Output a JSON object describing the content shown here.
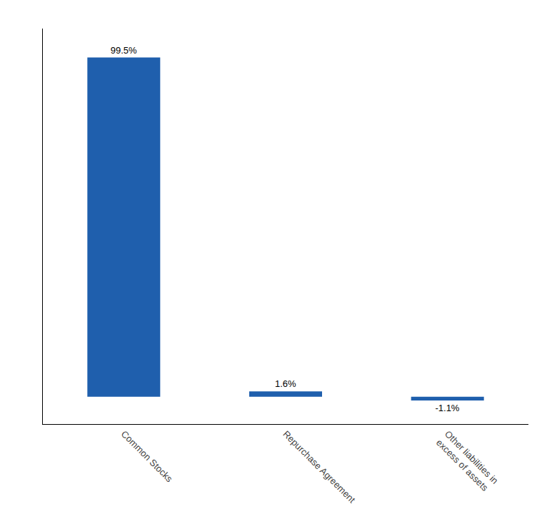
{
  "chart_data": {
    "type": "bar",
    "categories": [
      "Common Stocks",
      "Repurchase Agreement",
      "Other liabilities in\nexcess of assets"
    ],
    "values": [
      99.5,
      1.6,
      -1.1
    ],
    "value_labels": [
      "99.5%",
      "1.6%",
      "-1.1%"
    ],
    "data_labels": true,
    "color": "#1F5FAD",
    "ylim": [
      -8,
      108
    ],
    "grid": false,
    "tick_labels": "x"
  }
}
